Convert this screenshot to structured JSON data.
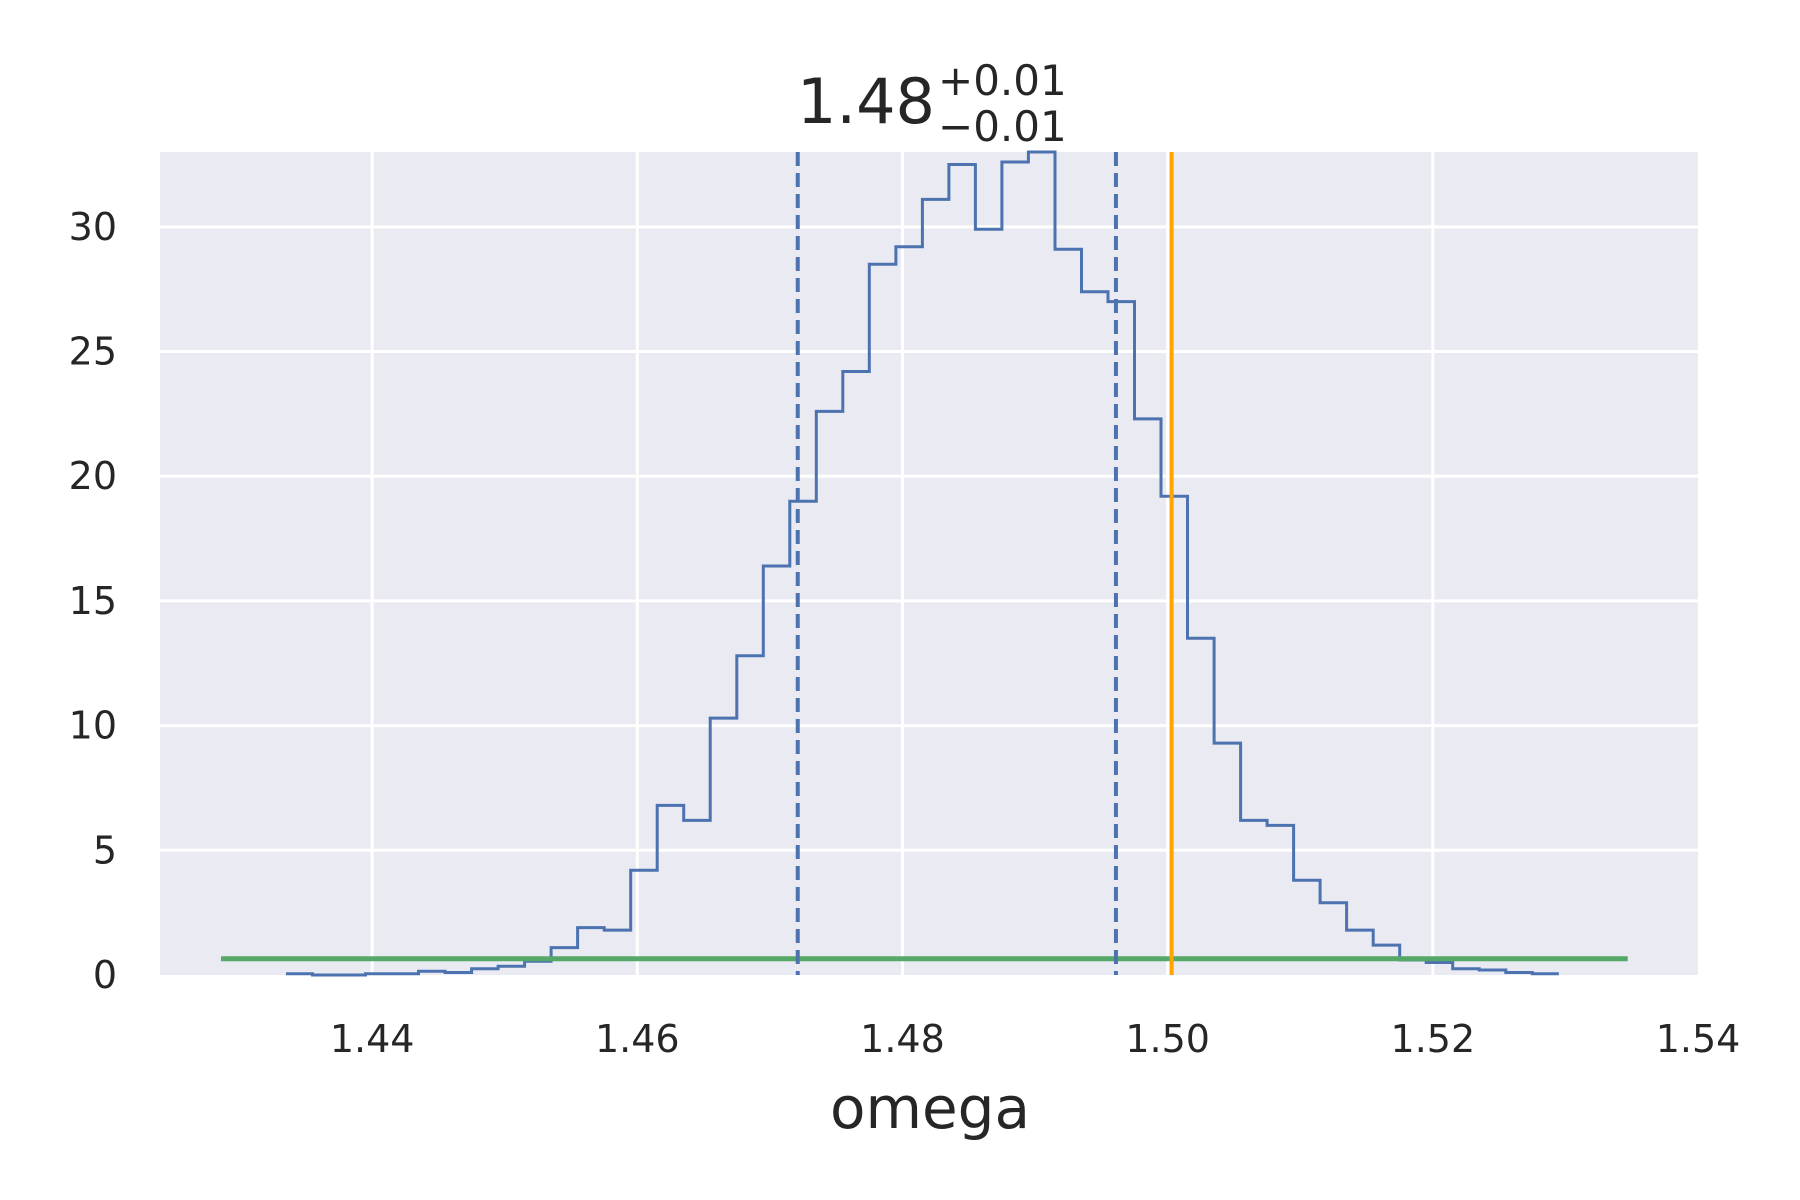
{
  "chart_data": {
    "type": "histogram",
    "title": {
      "value": "1.48",
      "upper": "+0.01",
      "lower": "−0.01"
    },
    "xlabel": "omega",
    "ylabel": "",
    "xlim": [
      1.424,
      1.54
    ],
    "ylim": [
      0,
      33
    ],
    "xticks": [
      1.44,
      1.46,
      1.48,
      1.5,
      1.52,
      1.54
    ],
    "xtick_labels": [
      "1.44",
      "1.46",
      "1.48",
      "1.50",
      "1.52",
      "1.54"
    ],
    "yticks": [
      0,
      5,
      10,
      15,
      20,
      25,
      30
    ],
    "ytick_labels": [
      "0",
      "5",
      "10",
      "15",
      "20",
      "25",
      "30"
    ],
    "grid": true,
    "background": "#eaeaf2",
    "bin_edges": [
      1.4335,
      1.4355,
      1.4375,
      1.4395,
      1.4415,
      1.4435,
      1.4455,
      1.4475,
      1.4495,
      1.4515,
      1.4535,
      1.4555,
      1.4575,
      1.4595,
      1.4615,
      1.4635,
      1.4655,
      1.4675,
      1.4695,
      1.4715,
      1.4735,
      1.4755,
      1.4775,
      1.4795,
      1.4815,
      1.4835,
      1.4855,
      1.4875,
      1.4895,
      1.4915,
      1.4935,
      1.4955,
      1.4975,
      1.4995,
      1.5015,
      1.5035,
      1.5055,
      1.5075,
      1.5095,
      1.5115,
      1.5135,
      1.5155,
      1.5175,
      1.5195,
      1.5215,
      1.5235,
      1.5255,
      1.5275,
      1.5295
    ],
    "counts": [
      0.05,
      0,
      0,
      0.05,
      0.05,
      0.15,
      0.1,
      0.25,
      0.35,
      0.55,
      1.1,
      1.9,
      1.8,
      4.2,
      6.8,
      6.2,
      10.3,
      12.8,
      16.4,
      19.0,
      22.6,
      24.2,
      28.5,
      29.2,
      31.1,
      32.5,
      29.9,
      32.6,
      33.0,
      29.1,
      27.4,
      27.0,
      22.3,
      19.2,
      13.5,
      9.3,
      6.2,
      6.0,
      3.8,
      2.9,
      1.8,
      1.2,
      0.6,
      0.5,
      0.25,
      0.2,
      0.1,
      0.05
    ],
    "series": [
      {
        "type": "histogram",
        "color": "#4c72b0"
      },
      {
        "type": "hline",
        "y": 0.65,
        "x_start": 1.4286,
        "x_end": 1.5347,
        "color": "#55a868"
      },
      {
        "type": "vline",
        "x": 1.4721,
        "style": "dashed",
        "color": "#4c72b0"
      },
      {
        "type": "vline",
        "x": 1.4961,
        "style": "dashed",
        "color": "#4c72b0"
      },
      {
        "type": "vline",
        "x": 1.5003,
        "style": "solid",
        "color": "#ffa500"
      }
    ]
  }
}
